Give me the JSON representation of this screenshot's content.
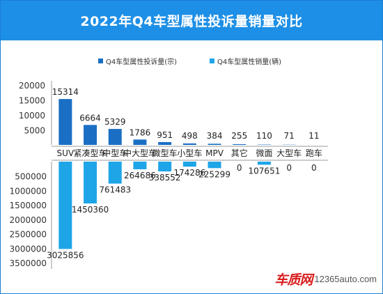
{
  "title": "2022年Q4车型属性投诉量销量对比",
  "watermark": {
    "brand": "车质网",
    "site": "12365auto.com"
  },
  "colors": {
    "title_bg": "#1e8fe6",
    "complaints": "#1a6fc4",
    "sales": "#1ea5e8"
  },
  "chart_data": [
    {
      "type": "bar",
      "categories": [
        "SUV",
        "紧凑型车",
        "中型车",
        "中大型车",
        "微型车",
        "小型车",
        "MPV",
        "其它",
        "微面",
        "大型车",
        "跑车"
      ],
      "series": [
        {
          "name": "Q4车型属性投诉量(宗)",
          "values": [
            15314,
            6664,
            5329,
            1786,
            951,
            498,
            384,
            255,
            110,
            71,
            11
          ]
        }
      ],
      "yticks": [
        "20000",
        "15000",
        "10000",
        "5000"
      ],
      "ylim": [
        0,
        20000
      ],
      "legend_position": "top",
      "grid": false
    },
    {
      "type": "bar",
      "orientation": "downward",
      "categories": [
        "SUV",
        "紧凑型车",
        "中型车",
        "中大型车",
        "微型车",
        "小型车",
        "MPV",
        "其它",
        "微面",
        "大型车",
        "跑车"
      ],
      "series": [
        {
          "name": "Q4车型属性销量(辆)",
          "values": [
            3025856,
            1450360,
            761483,
            264686,
            338552,
            174286,
            225299,
            0,
            107651,
            0,
            0
          ]
        }
      ],
      "yticks": [
        "500000",
        "1000000",
        "1500000",
        "2000000",
        "2500000",
        "3000000",
        "3500000"
      ],
      "ylim": [
        0,
        3500000
      ],
      "grid": false
    }
  ]
}
